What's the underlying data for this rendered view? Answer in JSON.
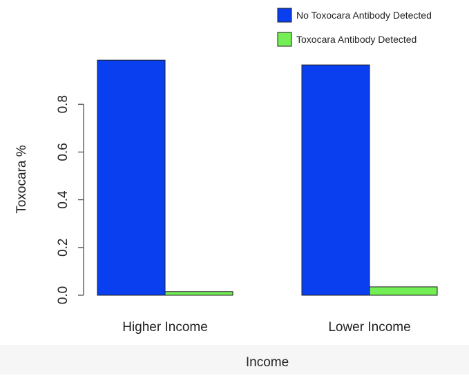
{
  "chart_data": {
    "type": "bar",
    "title": "",
    "xlabel": "Income",
    "ylabel": "Toxocara %",
    "categories": [
      "Higher Income",
      "Lower Income"
    ],
    "series": [
      {
        "name": "No Toxocara Antibody Detected",
        "color": "#0a3ff0",
        "values": [
          0.985,
          0.965
        ]
      },
      {
        "name": "Toxocara Antibody Detected",
        "color": "#74ee55",
        "values": [
          0.015,
          0.035
        ]
      }
    ],
    "yticks": [
      "0.0",
      "0.2",
      "0.4",
      "0.6",
      "0.8"
    ],
    "ylim": [
      0,
      1
    ],
    "grid": false,
    "legend_position": "top-right"
  }
}
